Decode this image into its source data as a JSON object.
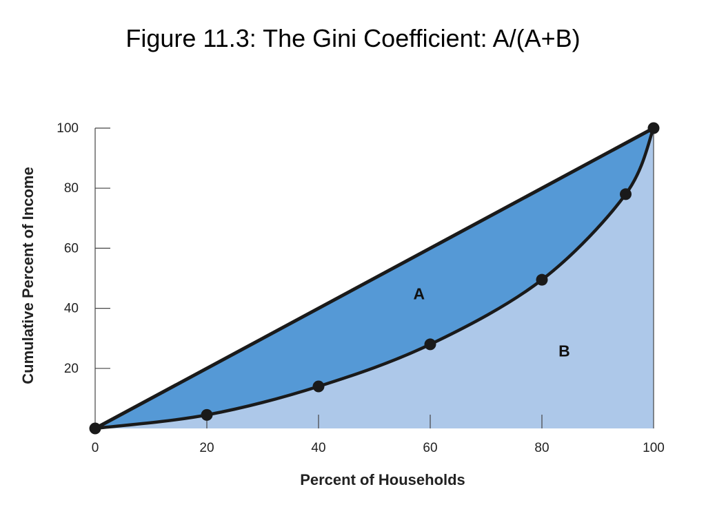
{
  "title": "Figure 11.3: The Gini Coefficient: A/(A+B)",
  "chart_data": {
    "type": "area",
    "title": "Figure 11.3: The Gini Coefficient: A/(A+B)",
    "xlabel": "Percent of Households",
    "ylabel": "Cumulative Percent of Income",
    "xlim": [
      0,
      100
    ],
    "ylim": [
      0,
      100
    ],
    "x_ticks": [
      "0",
      "20",
      "40",
      "60",
      "80",
      "100"
    ],
    "y_ticks": [
      "20",
      "40",
      "60",
      "80",
      "100"
    ],
    "grid": false,
    "legend": "none",
    "series": [
      {
        "name": "",
        "kind": "line-of-equality",
        "points": [
          [
            0,
            0
          ],
          [
            100,
            100
          ]
        ]
      },
      {
        "name": "",
        "kind": "lorenz-curve",
        "points": [
          [
            0,
            0
          ],
          [
            20,
            4.5
          ],
          [
            40,
            14
          ],
          [
            60,
            28
          ],
          [
            80,
            49.5
          ],
          [
            95,
            78
          ],
          [
            100,
            100
          ]
        ]
      }
    ],
    "regions": [
      {
        "label": "A",
        "x": 58,
        "y": 43,
        "color": "#5599d6"
      },
      {
        "label": "B",
        "x": 84,
        "y": 24,
        "color": "#adc8e9"
      }
    ]
  },
  "colors": {
    "region_a": "#5599d6",
    "region_b": "#adc8e9",
    "line": "#1a1a1a",
    "axis": "#444444"
  }
}
